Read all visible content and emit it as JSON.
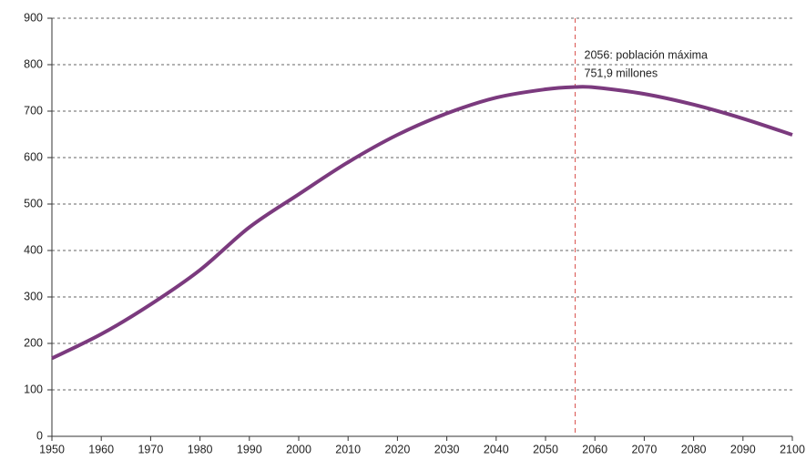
{
  "chart_data": {
    "type": "line",
    "x": [
      1950,
      1960,
      1970,
      1980,
      1990,
      2000,
      2010,
      2020,
      2030,
      2040,
      2050,
      2056,
      2060,
      2070,
      2080,
      2090,
      2100
    ],
    "series": [
      {
        "color": "#7b3a7e",
        "values": [
          168,
          220,
          284,
          358,
          450,
          521,
          590,
          649,
          695,
          729,
          747,
          751.9,
          751,
          737,
          714,
          684,
          649
        ]
      }
    ],
    "xlim": [
      1950,
      2100
    ],
    "xticks": [
      1950,
      1960,
      1970,
      1980,
      1990,
      2000,
      2010,
      2020,
      2030,
      2040,
      2050,
      2060,
      2070,
      2080,
      2090,
      2100
    ],
    "ylim": [
      0,
      900
    ],
    "yticks": [
      0,
      100,
      200,
      300,
      400,
      500,
      600,
      700,
      800,
      900
    ],
    "grid": true,
    "annotation": {
      "x": 2056,
      "color": "#d9534f",
      "lines": [
        "2056: población máxima",
        "751,9 millones"
      ]
    }
  }
}
